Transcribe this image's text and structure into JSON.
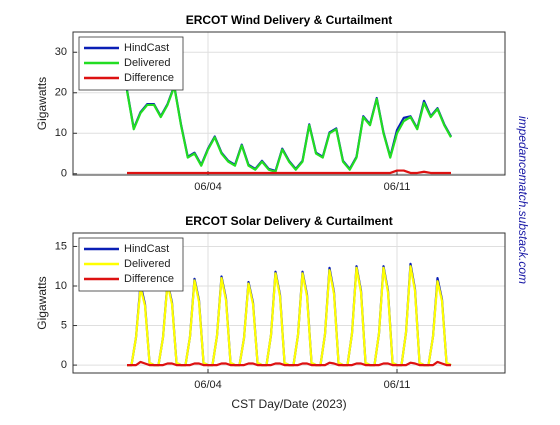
{
  "chart_data": [
    {
      "type": "line",
      "title": "ERCOT Wind Delivery & Curtailment",
      "ylabel": "Gigawatts",
      "x": [
        0,
        6,
        12,
        18,
        24,
        30,
        36,
        42,
        48,
        54,
        60,
        66,
        72,
        78,
        84,
        90,
        96,
        102,
        108,
        114,
        120,
        126,
        132,
        138,
        144,
        150,
        156,
        162,
        168,
        174,
        180,
        186,
        192,
        198,
        204,
        210,
        216,
        222,
        228,
        234,
        240,
        246,
        252,
        258,
        264,
        270,
        276,
        282,
        288
      ],
      "series": [
        {
          "name": "HindCast",
          "color": "#0a1fb5",
          "values": [
            20.7,
            11.2,
            15.2,
            17.2,
            17.2,
            14.2,
            17.2,
            21.7,
            12.2,
            4.2,
            5.2,
            2.2,
            6.2,
            9.2,
            5.2,
            3.2,
            2.2,
            7.2,
            2.2,
            1.2,
            3.2,
            1.2,
            0.7,
            6.2,
            3.2,
            1.2,
            3.2,
            12.2,
            5.2,
            4.2,
            10.2,
            11.2,
            3.2,
            1.2,
            4.2,
            14.2,
            12.2,
            18.7,
            10.2,
            4.2,
            10.8,
            13.8,
            14.2,
            11.2,
            18,
            14.2,
            16.2,
            12.2,
            9.2
          ]
        },
        {
          "name": "Delivered",
          "color": "#22dd22",
          "values": [
            20.5,
            11,
            15,
            17,
            17,
            14,
            17,
            21.5,
            12,
            4,
            5,
            2,
            6,
            9,
            5,
            3,
            2,
            7,
            2,
            1,
            3,
            1,
            0.5,
            6,
            3,
            1,
            3,
            12,
            5,
            4,
            10,
            11,
            3,
            1,
            4,
            14,
            12,
            18.5,
            10,
            4,
            10,
            13,
            14,
            11,
            17.5,
            14,
            16,
            12,
            9
          ]
        },
        {
          "name": "Difference",
          "color": "#dd1111",
          "values": [
            0.2,
            0.2,
            0.2,
            0.2,
            0.2,
            0.2,
            0.2,
            0.2,
            0.2,
            0.2,
            0.2,
            0.2,
            0.2,
            0.2,
            0.2,
            0.2,
            0.2,
            0.2,
            0.2,
            0.2,
            0.2,
            0.2,
            0.2,
            0.2,
            0.2,
            0.2,
            0.2,
            0.2,
            0.2,
            0.2,
            0.2,
            0.2,
            0.2,
            0.2,
            0.2,
            0.2,
            0.2,
            0.2,
            0.2,
            0.2,
            0.8,
            0.8,
            0.2,
            0.2,
            0.5,
            0.2,
            0.2,
            0.2,
            0.2
          ]
        }
      ],
      "xlim": [
        -48,
        336
      ],
      "xticks": [
        {
          "value": 72,
          "label": "06/04"
        },
        {
          "value": 240,
          "label": "06/11"
        }
      ],
      "ylim": [
        -0.3,
        35
      ],
      "yticks": [
        0,
        10,
        20,
        30
      ],
      "grid": true,
      "legend": "upper-left"
    },
    {
      "type": "line",
      "title": "ERCOT Solar Delivery & Curtailment",
      "ylabel": "Gigawatts",
      "xlabel": "CST Day/Date (2023)",
      "x": [
        0,
        4,
        8,
        12,
        16,
        20,
        24,
        28,
        32,
        36,
        40,
        44,
        48,
        52,
        56,
        60,
        64,
        68,
        72,
        76,
        80,
        84,
        88,
        92,
        96,
        100,
        104,
        108,
        112,
        116,
        120,
        124,
        128,
        132,
        136,
        140,
        144,
        148,
        152,
        156,
        160,
        164,
        168,
        172,
        176,
        180,
        184,
        188,
        192,
        196,
        200,
        204,
        208,
        212,
        216,
        220,
        224,
        228,
        232,
        236,
        240,
        244,
        248,
        252,
        256,
        260,
        264,
        268,
        272,
        276,
        280,
        284,
        288
      ],
      "series": [
        {
          "name": "HindCast",
          "color": "#0a1fb5",
          "values": [
            0,
            0,
            3.5,
            10.2,
            7.7,
            0.3,
            0,
            0,
            3.5,
            10.5,
            7.9,
            0.3,
            0,
            0,
            3.6,
            10.9,
            8.2,
            0.3,
            0,
            0,
            3.7,
            11.2,
            8.4,
            0.3,
            0,
            0,
            3.4,
            10.5,
            7.9,
            0.3,
            0,
            0,
            3.8,
            11.8,
            8.9,
            0.3,
            0,
            0,
            3.8,
            11.8,
            8.9,
            0.3,
            0,
            0,
            3.9,
            12.3,
            9.2,
            0.3,
            0,
            0,
            4,
            12.5,
            9.4,
            0.3,
            0,
            0,
            4,
            12.5,
            9.4,
            0.3,
            0,
            0,
            4.1,
            12.8,
            9.6,
            0.3,
            0,
            0,
            3.6,
            11,
            8.3,
            0.3,
            0
          ]
        },
        {
          "name": "Delivered",
          "color": "#ffff00",
          "values": [
            0,
            0,
            3.5,
            9.8,
            7.5,
            0.3,
            0,
            0,
            3.5,
            10.3,
            7.7,
            0.3,
            0,
            0,
            3.6,
            10.7,
            8,
            0.3,
            0,
            0,
            3.7,
            11,
            8.2,
            0.3,
            0,
            0,
            3.4,
            10.3,
            7.7,
            0.3,
            0,
            0,
            3.8,
            11.6,
            8.7,
            0.3,
            0,
            0,
            3.8,
            11.6,
            8.7,
            0.3,
            0,
            0,
            3.9,
            12,
            9,
            0.3,
            0,
            0,
            4,
            12.3,
            9.2,
            0.3,
            0,
            0,
            4,
            12.3,
            9.2,
            0.3,
            0,
            0,
            4.1,
            12.5,
            9.4,
            0.3,
            0,
            0,
            3.6,
            10.6,
            8.1,
            0.3,
            0
          ]
        },
        {
          "name": "Difference",
          "color": "#dd1111",
          "values": [
            0,
            0,
            0,
            0.4,
            0.2,
            0,
            0,
            0,
            0,
            0.2,
            0.2,
            0,
            0,
            0,
            0,
            0.2,
            0.2,
            0,
            0,
            0,
            0,
            0.2,
            0.2,
            0,
            0,
            0,
            0,
            0.2,
            0.2,
            0,
            0,
            0,
            0,
            0.2,
            0.2,
            0,
            0,
            0,
            0,
            0.2,
            0.2,
            0,
            0,
            0,
            0,
            0.3,
            0.2,
            0,
            0,
            0,
            0,
            0.2,
            0.2,
            0,
            0,
            0,
            0,
            0.2,
            0.2,
            0,
            0,
            0,
            0,
            0.3,
            0.2,
            0,
            0,
            0,
            0,
            0.4,
            0.2,
            0,
            0
          ]
        }
      ],
      "xlim": [
        -48,
        336
      ],
      "xticks": [
        {
          "value": 72,
          "label": "06/04"
        },
        {
          "value": 240,
          "label": "06/11"
        }
      ],
      "ylim": [
        -1,
        16.7
      ],
      "yticks": [
        0,
        5,
        10,
        15
      ],
      "grid": true,
      "legend": "upper-left"
    }
  ],
  "side_note": "impedancematch.substack.com"
}
